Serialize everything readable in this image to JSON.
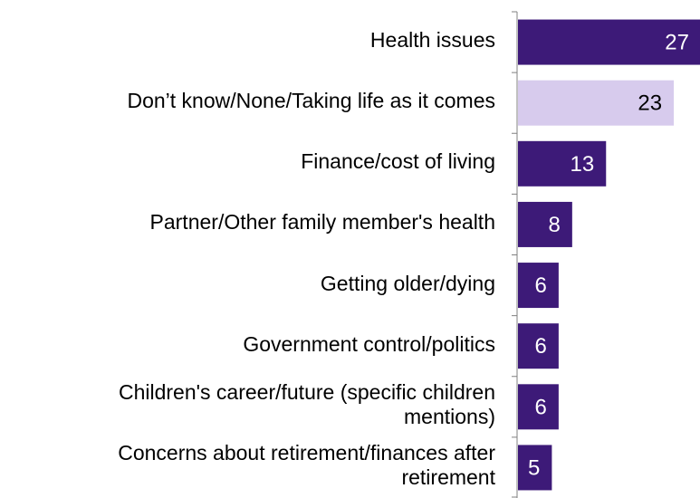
{
  "chart_data": {
    "type": "bar",
    "orientation": "horizontal",
    "categories": [
      "Health issues",
      "Don’t know/None/Taking life as it comes",
      "Finance/cost of living",
      "Partner/Other family member's health",
      "Getting older/dying",
      "Government control/politics",
      "Children's career/future (specific children mentions)",
      "Concerns about retirement/finances after retirement"
    ],
    "category_lines": [
      [
        "Health issues"
      ],
      [
        "Don’t know/None/Taking life as it comes"
      ],
      [
        "Finance/cost of living"
      ],
      [
        "Partner/Other family member's health"
      ],
      [
        "Getting older/dying"
      ],
      [
        "Government control/politics"
      ],
      [
        "Children's career/future (specific children",
        "mentions)"
      ],
      [
        "Concerns about retirement/finances after",
        "retirement"
      ]
    ],
    "values": [
      27,
      23,
      13,
      8,
      6,
      6,
      6,
      5
    ],
    "bar_colors": [
      "#3d1a78",
      "#d7cbed",
      "#3d1a78",
      "#3d1a78",
      "#3d1a78",
      "#3d1a78",
      "#3d1a78",
      "#3d1a78"
    ],
    "value_label_colors": [
      "#ffffff",
      "#000000",
      "#ffffff",
      "#ffffff",
      "#ffffff",
      "#ffffff",
      "#ffffff",
      "#ffffff"
    ],
    "xlim": [
      0,
      27
    ],
    "grid": false,
    "legend": "none"
  }
}
